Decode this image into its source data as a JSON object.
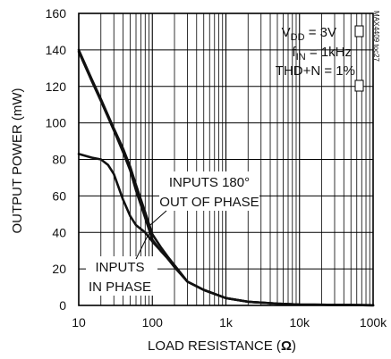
{
  "chart_data": {
    "type": "line",
    "xlabel": "LOAD RESISTANCE (",
    "xlabel_unit": "Ω",
    "xlabel_close": ")",
    "ylabel": "OUTPUT POWER (mW)",
    "x_scale": "log",
    "xlim": [
      10,
      100000
    ],
    "ylim": [
      0,
      160
    ],
    "grid": true,
    "x_ticks": [
      {
        "value": 10,
        "label": "10"
      },
      {
        "value": 100,
        "label": "100"
      },
      {
        "value": 1000,
        "label": "1k"
      },
      {
        "value": 10000,
        "label": "10k"
      },
      {
        "value": 100000,
        "label": "100k"
      }
    ],
    "y_ticks": [
      {
        "value": 0,
        "label": "0"
      },
      {
        "value": 20,
        "label": "20"
      },
      {
        "value": 40,
        "label": "40"
      },
      {
        "value": 60,
        "label": "60"
      },
      {
        "value": 80,
        "label": "80"
      },
      {
        "value": 100,
        "label": "100"
      },
      {
        "value": 120,
        "label": "120"
      },
      {
        "value": 140,
        "label": "140"
      },
      {
        "value": 160,
        "label": "160"
      }
    ],
    "conditions": {
      "vdd_main": "V",
      "vdd_sub": "DD",
      "vdd_value": " = 3V",
      "fin_main": "f",
      "fin_sub": "IN",
      "fin_value": " = 1kHz",
      "thdn": "THD+N = 1%"
    },
    "side_label": "MAX4409 toc27",
    "annotations": {
      "out_of_phase_line1": "INPUTS 180°",
      "out_of_phase_line2": "OUT OF PHASE",
      "in_phase_line1": "INPUTS",
      "in_phase_line2": "IN PHASE"
    },
    "series": [
      {
        "id": "out_of_phase",
        "x": [
          10,
          15,
          20,
          30,
          40,
          50,
          60,
          80,
          100,
          130,
          160,
          200,
          300,
          500,
          1000,
          2000,
          5000,
          10000,
          100000
        ],
        "y": [
          139,
          123,
          112,
          96,
          84,
          74,
          63,
          48,
          36,
          30,
          26,
          22,
          13,
          8.5,
          4,
          2,
          1,
          0.5,
          0.1
        ]
      },
      {
        "id": "out_of_phase_b",
        "x": [
          10,
          15,
          20,
          30,
          40,
          50,
          60,
          80,
          100,
          130,
          160,
          200,
          300,
          500,
          1000,
          2000,
          5000,
          10000,
          100000
        ],
        "y": [
          140,
          124,
          113,
          97,
          86,
          76,
          66,
          51,
          39,
          32,
          27,
          22,
          13,
          8.5,
          4,
          2,
          1,
          0.5,
          0.1
        ]
      },
      {
        "id": "in_phase",
        "x": [
          10,
          15,
          20,
          25,
          30,
          40,
          50,
          60,
          80,
          100,
          130,
          160,
          200,
          300,
          500,
          1000,
          2000,
          5000,
          10000,
          100000
        ],
        "y": [
          83,
          81,
          80,
          77,
          72,
          58,
          49,
          44,
          40,
          35,
          30,
          26,
          21,
          13,
          8.5,
          4,
          2,
          1,
          0.5,
          0.1
        ]
      }
    ]
  }
}
